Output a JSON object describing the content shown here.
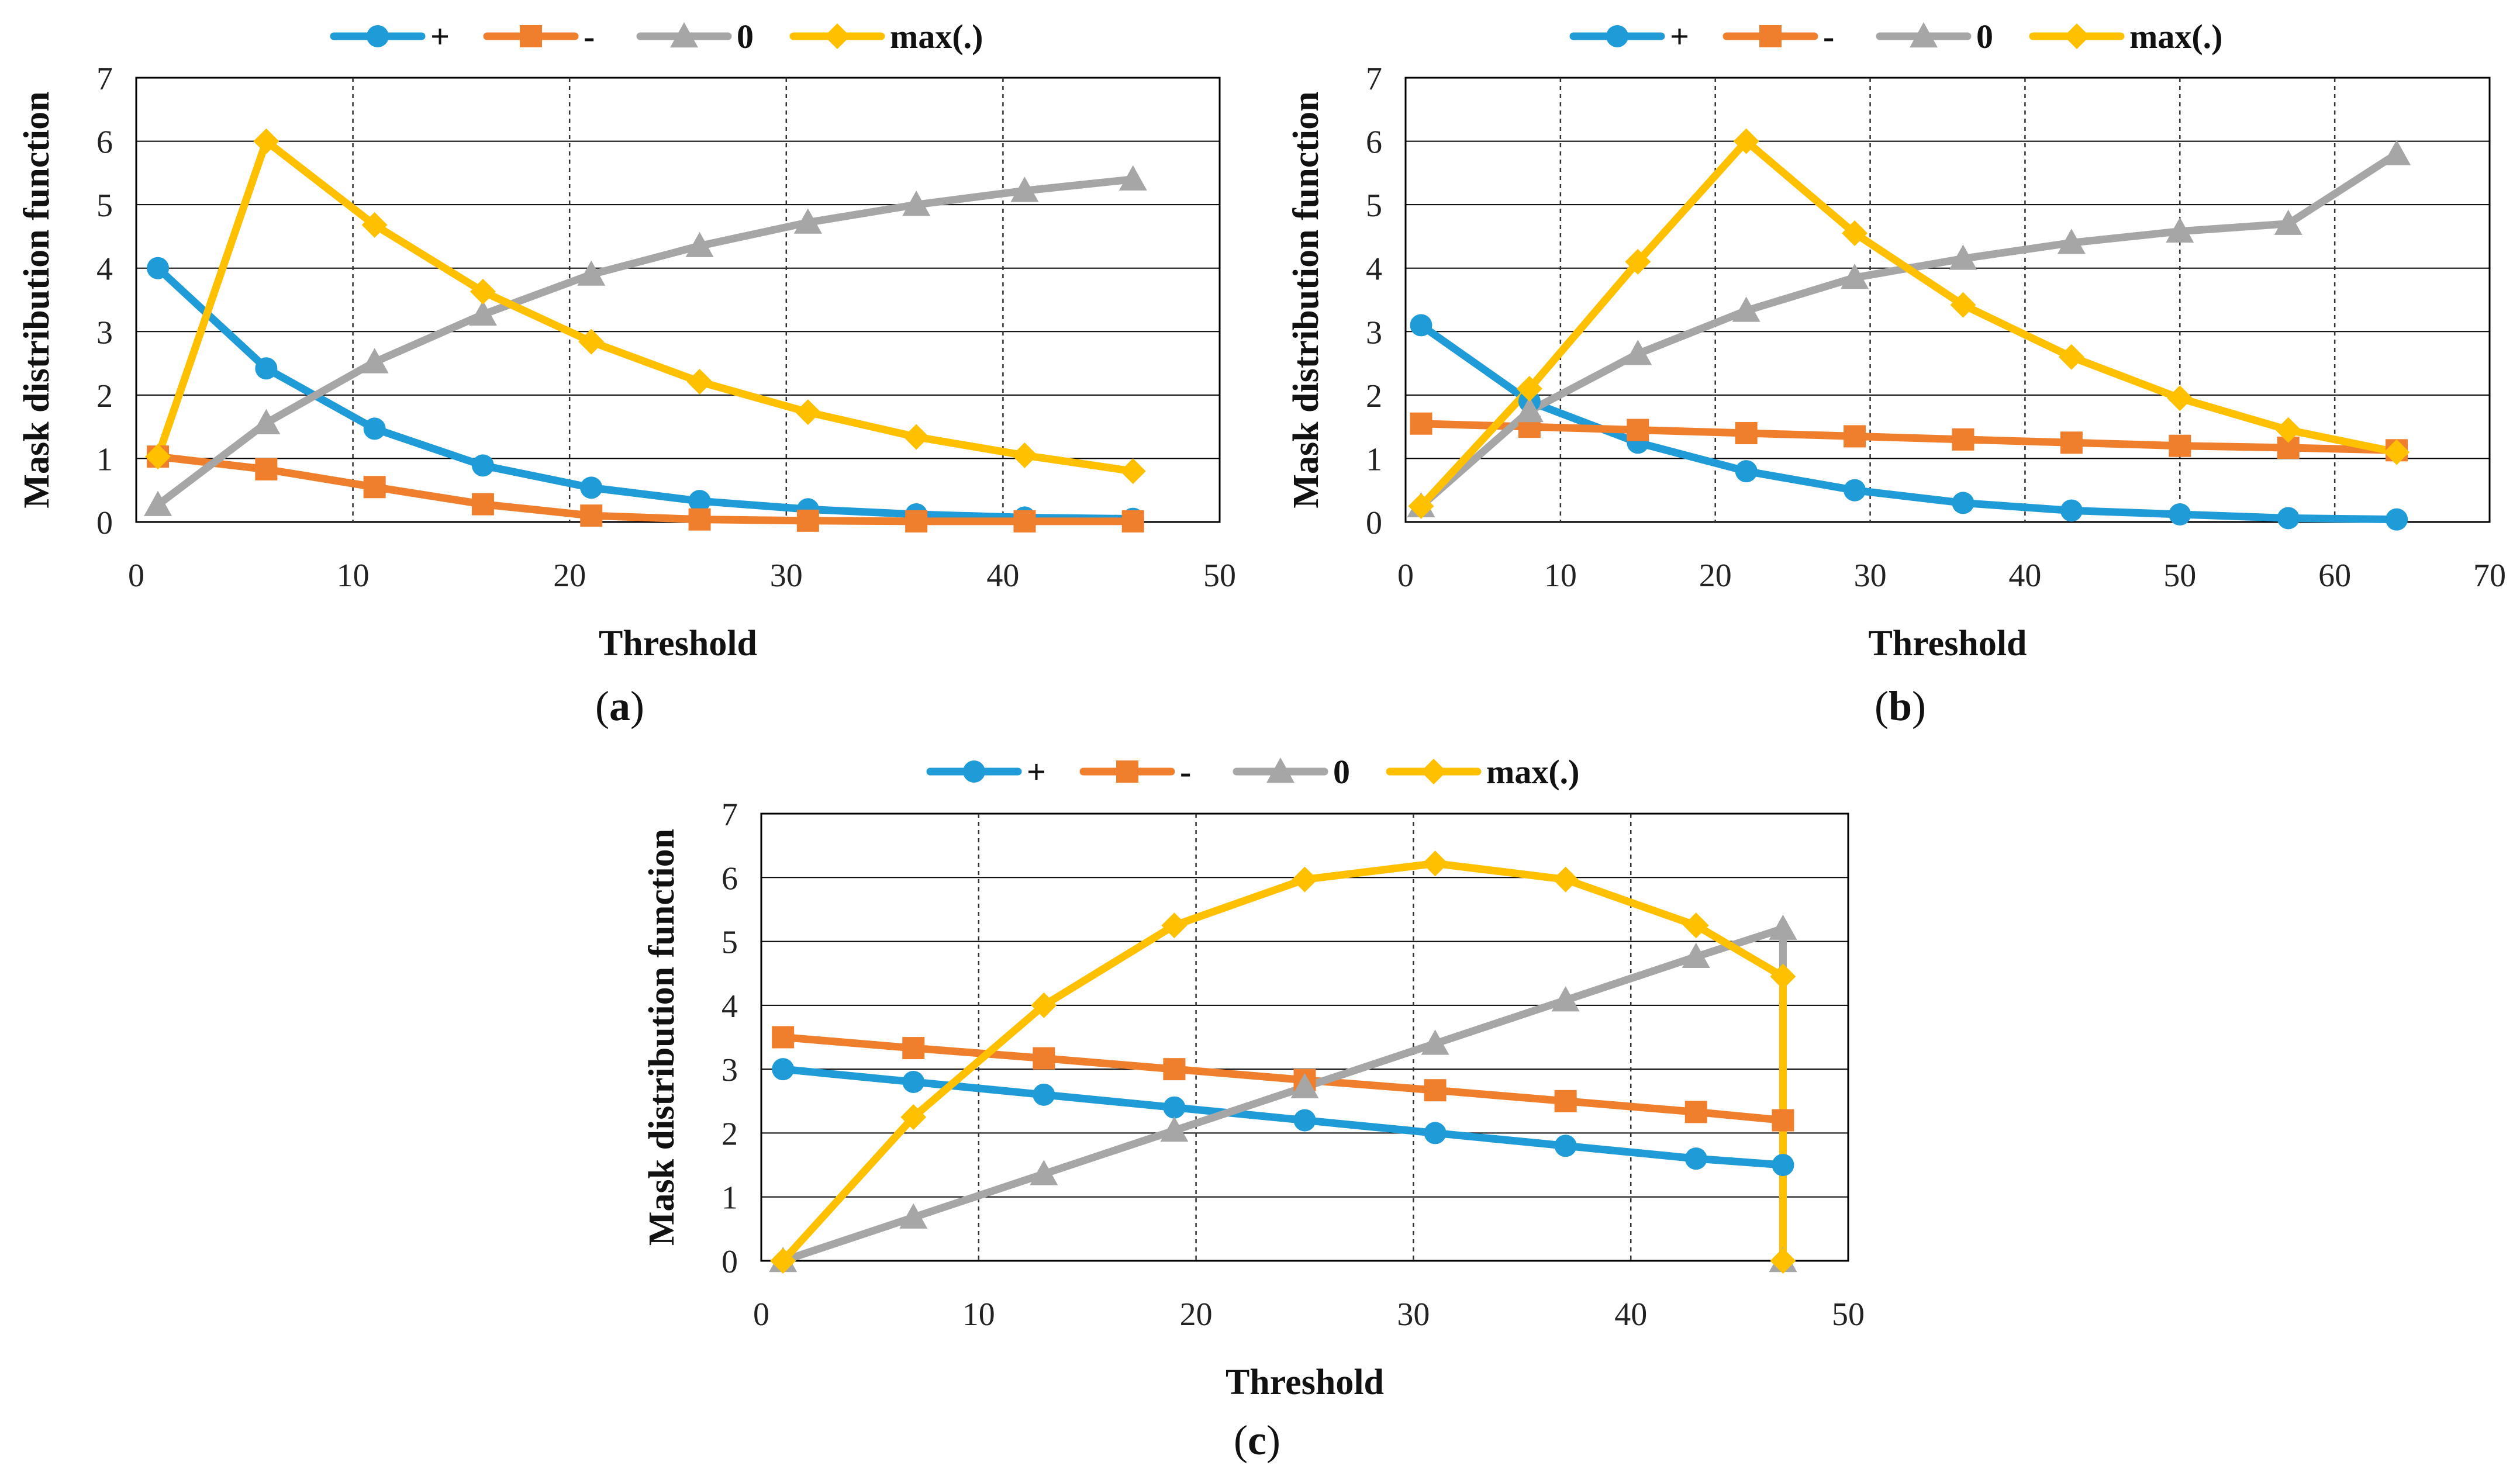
{
  "figure": {
    "colors": {
      "plus": "#1F9BD7",
      "minus": "#F07F2D",
      "zero": "#A6A6A6",
      "max": "#FFC000",
      "grid": "#7F7F7F",
      "frame": "#000000"
    }
  },
  "chart_data": [
    {
      "id": "a",
      "type": "line",
      "caption_open": "(",
      "caption_letter": "a",
      "caption_close": ")",
      "xlabel": "Threshold",
      "ylabel": "Mask distribution function",
      "xlim": [
        0,
        50
      ],
      "ylim": [
        0,
        7
      ],
      "xticks": [
        0,
        10,
        20,
        30,
        40,
        50
      ],
      "yticks": [
        0,
        1,
        2,
        3,
        4,
        5,
        6,
        7
      ],
      "grid": true,
      "legend_position": "top",
      "x": [
        1,
        6,
        11,
        16,
        21,
        26,
        31,
        36,
        41,
        46
      ],
      "series": [
        {
          "key": "plus",
          "name": "+",
          "marker": "circle",
          "values": [
            4.0,
            2.42,
            1.47,
            0.89,
            0.54,
            0.33,
            0.2,
            0.12,
            0.07,
            0.05
          ]
        },
        {
          "key": "minus",
          "name": "-",
          "marker": "square",
          "values": [
            1.03,
            0.83,
            0.55,
            0.28,
            0.1,
            0.04,
            0.02,
            0.01,
            0.01,
            0.01
          ]
        },
        {
          "key": "zero",
          "name": "0",
          "marker": "triangle",
          "values": [
            0.27,
            1.56,
            2.52,
            3.27,
            3.9,
            4.35,
            4.72,
            5.0,
            5.22,
            5.4
          ]
        },
        {
          "key": "max",
          "name": "max(.)",
          "marker": "diamond",
          "values": [
            1.03,
            6.0,
            4.68,
            3.63,
            2.84,
            2.21,
            1.73,
            1.34,
            1.05,
            0.8
          ]
        }
      ]
    },
    {
      "id": "b",
      "type": "line",
      "caption_open": "(",
      "caption_letter": "b",
      "caption_close": ")",
      "xlabel": "Threshold",
      "ylabel": "Mask distribution function",
      "xlim": [
        0,
        70
      ],
      "ylim": [
        0,
        7
      ],
      "xticks": [
        0,
        10,
        20,
        30,
        40,
        50,
        60,
        70
      ],
      "yticks": [
        0,
        1,
        2,
        3,
        4,
        5,
        6,
        7
      ],
      "grid": true,
      "legend_position": "top",
      "x": [
        1,
        8,
        15,
        22,
        29,
        36,
        43,
        50,
        57,
        64
      ],
      "series": [
        {
          "key": "plus",
          "name": "+",
          "marker": "circle",
          "values": [
            3.1,
            1.9,
            1.25,
            0.8,
            0.5,
            0.3,
            0.18,
            0.12,
            0.06,
            0.04
          ]
        },
        {
          "key": "minus",
          "name": "-",
          "marker": "square",
          "values": [
            1.55,
            1.5,
            1.45,
            1.4,
            1.35,
            1.3,
            1.25,
            1.2,
            1.17,
            1.13
          ]
        },
        {
          "key": "zero",
          "name": "0",
          "marker": "triangle",
          "values": [
            0.25,
            1.75,
            2.65,
            3.33,
            3.85,
            4.15,
            4.4,
            4.58,
            4.7,
            5.8
          ]
        },
        {
          "key": "max",
          "name": "max(.)",
          "marker": "diamond",
          "values": [
            0.25,
            2.1,
            4.1,
            6.0,
            4.55,
            3.42,
            2.6,
            1.95,
            1.45,
            1.1
          ]
        }
      ]
    },
    {
      "id": "c",
      "type": "line",
      "caption_open": "(",
      "caption_letter": "c",
      "caption_close": ")",
      "xlabel": "Threshold",
      "ylabel": "Mask distribution function",
      "xlim": [
        0,
        50
      ],
      "ylim": [
        0,
        7
      ],
      "xticks": [
        0,
        10,
        20,
        30,
        40,
        50
      ],
      "yticks": [
        0,
        1,
        2,
        3,
        4,
        5,
        6,
        7
      ],
      "grid": true,
      "legend_position": "top",
      "x": [
        1,
        7,
        13,
        19,
        25,
        31,
        37,
        43,
        47,
        47
      ],
      "series": [
        {
          "key": "plus",
          "name": "+",
          "marker": "circle",
          "values": [
            3.0,
            2.8,
            2.6,
            2.4,
            2.2,
            2.0,
            1.8,
            1.6,
            1.5,
            null
          ]
        },
        {
          "key": "minus",
          "name": "-",
          "marker": "square",
          "values": [
            3.5,
            3.33,
            3.17,
            3.0,
            2.83,
            2.67,
            2.5,
            2.33,
            2.2,
            null
          ]
        },
        {
          "key": "zero",
          "name": "0",
          "marker": "triangle",
          "values": [
            0.0,
            0.68,
            1.36,
            2.04,
            2.72,
            3.4,
            4.08,
            4.76,
            5.2,
            0.0
          ]
        },
        {
          "key": "max",
          "name": "max(.)",
          "marker": "diamond",
          "values": [
            0.0,
            2.25,
            4.0,
            5.25,
            5.97,
            6.22,
            5.97,
            5.25,
            4.45,
            0.0
          ]
        }
      ]
    }
  ]
}
